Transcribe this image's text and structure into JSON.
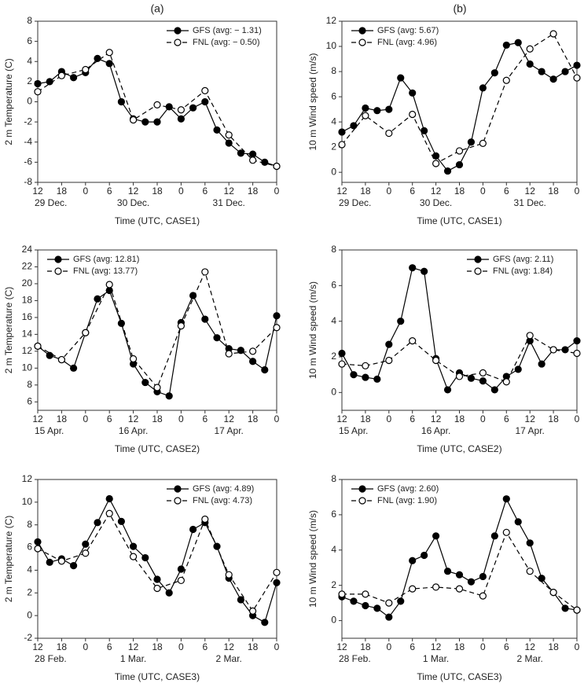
{
  "column_labels": [
    "(a)",
    "(b)"
  ],
  "chart_data": [
    {
      "type": "line",
      "ylabel": "2 m Temperature (C)",
      "xlabel": "Time (UTC, CASE1)",
      "legend": "upper right",
      "xlim": [
        0,
        60
      ],
      "ylim": [
        -8,
        8
      ],
      "yticks": [
        -8,
        -6,
        -4,
        -2,
        0,
        2,
        4,
        6,
        8
      ],
      "xticks": [
        {
          "value": 0,
          "label": "12"
        },
        {
          "value": 6,
          "label": "18"
        },
        {
          "value": 12,
          "label": "0"
        },
        {
          "value": 18,
          "label": "6"
        },
        {
          "value": 24,
          "label": "12"
        },
        {
          "value": 30,
          "label": "18"
        },
        {
          "value": 36,
          "label": "0"
        },
        {
          "value": 42,
          "label": "6"
        },
        {
          "value": 48,
          "label": "12"
        },
        {
          "value": 54,
          "label": "18"
        },
        {
          "value": 60,
          "label": "0"
        }
      ],
      "date_ticks": [
        {
          "value": 0,
          "label": "29 Dec."
        },
        {
          "value": 24,
          "label": "30 Dec."
        },
        {
          "value": 48,
          "label": "31 Dec."
        }
      ],
      "series": [
        {
          "name": "GFS (avg: − 1.31)",
          "color": "#000000",
          "linestyle": "solid",
          "marker": "filled",
          "x": [
            0,
            3,
            6,
            9,
            12,
            15,
            18,
            21,
            24,
            27,
            30,
            33,
            36,
            39,
            42,
            45,
            48,
            51,
            54,
            57,
            60
          ],
          "values": [
            1.8,
            2.0,
            3.0,
            2.4,
            2.9,
            4.3,
            3.8,
            0.0,
            -1.7,
            -2.0,
            -2.0,
            -0.5,
            -1.7,
            -0.6,
            0.0,
            -2.8,
            -4.1,
            -5.1,
            -5.2,
            -6.0,
            -6.4
          ]
        },
        {
          "name": "FNL (avg: − 0.50)",
          "color": "#000000",
          "linestyle": "dashed",
          "marker": "open",
          "x": [
            0,
            6,
            12,
            18,
            24,
            30,
            36,
            42,
            48,
            54,
            60
          ],
          "values": [
            1.0,
            2.6,
            3.2,
            4.9,
            -1.8,
            -0.3,
            -0.8,
            1.1,
            -3.3,
            -5.8,
            -6.4
          ]
        }
      ]
    },
    {
      "type": "line",
      "ylabel": "10 m Wind speed (m/s)",
      "xlabel": "Time (UTC, CASE1)",
      "legend": "upper left",
      "xlim": [
        0,
        60
      ],
      "ylim": [
        -0.8,
        12
      ],
      "yticks": [
        0,
        2,
        4,
        6,
        8,
        10,
        12
      ],
      "xticks": [
        {
          "value": 0,
          "label": "12"
        },
        {
          "value": 6,
          "label": "18"
        },
        {
          "value": 12,
          "label": "0"
        },
        {
          "value": 18,
          "label": "6"
        },
        {
          "value": 24,
          "label": "12"
        },
        {
          "value": 30,
          "label": "18"
        },
        {
          "value": 36,
          "label": "0"
        },
        {
          "value": 42,
          "label": "6"
        },
        {
          "value": 48,
          "label": "12"
        },
        {
          "value": 54,
          "label": "18"
        },
        {
          "value": 60,
          "label": "0"
        }
      ],
      "date_ticks": [
        {
          "value": 0,
          "label": "29 Dec."
        },
        {
          "value": 24,
          "label": "30 Dec."
        },
        {
          "value": 48,
          "label": "31 Dec."
        }
      ],
      "series": [
        {
          "name": "GFS (avg: 5.67)",
          "color": "#000000",
          "linestyle": "solid",
          "marker": "filled",
          "x": [
            0,
            3,
            6,
            9,
            12,
            15,
            18,
            21,
            24,
            27,
            30,
            33,
            36,
            39,
            42,
            45,
            48,
            51,
            54,
            57,
            60
          ],
          "values": [
            3.2,
            3.7,
            5.1,
            4.9,
            5.0,
            7.5,
            6.3,
            3.3,
            1.3,
            0.1,
            0.6,
            2.4,
            6.7,
            7.9,
            10.1,
            10.3,
            8.6,
            8.0,
            7.4,
            8.0,
            8.5
          ]
        },
        {
          "name": "FNL (avg: 4.96)",
          "color": "#000000",
          "linestyle": "dashed",
          "marker": "open",
          "x": [
            0,
            6,
            12,
            18,
            24,
            30,
            36,
            42,
            48,
            54,
            60
          ],
          "values": [
            2.2,
            4.5,
            3.1,
            4.6,
            0.7,
            1.7,
            2.3,
            7.3,
            9.8,
            11.0,
            7.5
          ]
        }
      ]
    },
    {
      "type": "line",
      "ylabel": "2 m Temperature (C)",
      "xlabel": "Time (UTC, CASE2)",
      "legend": "upper left",
      "xlim": [
        0,
        60
      ],
      "ylim": [
        5,
        24
      ],
      "yticks": [
        6,
        8,
        10,
        12,
        14,
        16,
        18,
        20,
        22,
        24
      ],
      "xticks": [
        {
          "value": 0,
          "label": "12"
        },
        {
          "value": 6,
          "label": "18"
        },
        {
          "value": 12,
          "label": "0"
        },
        {
          "value": 18,
          "label": "6"
        },
        {
          "value": 24,
          "label": "12"
        },
        {
          "value": 30,
          "label": "18"
        },
        {
          "value": 36,
          "label": "0"
        },
        {
          "value": 42,
          "label": "6"
        },
        {
          "value": 48,
          "label": "12"
        },
        {
          "value": 54,
          "label": "18"
        },
        {
          "value": 60,
          "label": "0"
        }
      ],
      "date_ticks": [
        {
          "value": 0,
          "label": "15 Apr."
        },
        {
          "value": 24,
          "label": "16 Apr."
        },
        {
          "value": 48,
          "label": "17 Apr."
        }
      ],
      "series": [
        {
          "name": "GFS (avg: 12.81)",
          "color": "#000000",
          "linestyle": "solid",
          "marker": "filled",
          "x": [
            0,
            3,
            6,
            9,
            12,
            15,
            18,
            21,
            24,
            27,
            30,
            33,
            36,
            39,
            42,
            45,
            48,
            51,
            54,
            57,
            60
          ],
          "values": [
            12.6,
            11.5,
            11.0,
            10.0,
            14.2,
            18.2,
            19.2,
            15.3,
            10.5,
            8.3,
            7.2,
            6.7,
            15.4,
            18.6,
            15.8,
            13.6,
            12.3,
            12.1,
            10.8,
            9.8,
            16.2
          ]
        },
        {
          "name": "FNL (avg: 13.77)",
          "color": "#000000",
          "linestyle": "dashed",
          "marker": "open",
          "x": [
            0,
            6,
            12,
            18,
            24,
            30,
            36,
            42,
            48,
            54,
            60
          ],
          "values": [
            12.6,
            11.0,
            14.2,
            19.9,
            11.1,
            7.7,
            15.0,
            21.4,
            11.7,
            12.0,
            14.8
          ]
        }
      ]
    },
    {
      "type": "line",
      "ylabel": "10 m Wind speed (m/s)",
      "xlabel": "Time (UTC, CASE2)",
      "legend": "upper right",
      "xlim": [
        0,
        60
      ],
      "ylim": [
        -1,
        8
      ],
      "yticks": [
        0,
        2,
        4,
        6,
        8
      ],
      "xticks": [
        {
          "value": 0,
          "label": "12"
        },
        {
          "value": 6,
          "label": "18"
        },
        {
          "value": 12,
          "label": "0"
        },
        {
          "value": 18,
          "label": "6"
        },
        {
          "value": 24,
          "label": "12"
        },
        {
          "value": 30,
          "label": "18"
        },
        {
          "value": 36,
          "label": "0"
        },
        {
          "value": 42,
          "label": "6"
        },
        {
          "value": 48,
          "label": "12"
        },
        {
          "value": 54,
          "label": "18"
        },
        {
          "value": 60,
          "label": "0"
        }
      ],
      "date_ticks": [
        {
          "value": 0,
          "label": "15 Apr."
        },
        {
          "value": 24,
          "label": "16 Apr."
        },
        {
          "value": 48,
          "label": "17 Apr."
        }
      ],
      "series": [
        {
          "name": "GFS (avg: 2.11)",
          "color": "#000000",
          "linestyle": "solid",
          "marker": "filled",
          "x": [
            0,
            3,
            6,
            9,
            12,
            15,
            18,
            21,
            24,
            27,
            30,
            33,
            36,
            39,
            42,
            45,
            48,
            51,
            54,
            57,
            60
          ],
          "values": [
            2.2,
            1.0,
            0.85,
            0.75,
            2.7,
            4.0,
            7.0,
            6.8,
            1.9,
            0.15,
            1.1,
            0.8,
            0.65,
            0.15,
            0.9,
            1.3,
            2.9,
            1.6,
            2.4,
            2.4,
            2.9
          ]
        },
        {
          "name": "FNL (avg: 1.84)",
          "color": "#000000",
          "linestyle": "dashed",
          "marker": "open",
          "x": [
            0,
            6,
            12,
            18,
            24,
            30,
            36,
            42,
            48,
            54,
            60
          ],
          "values": [
            1.6,
            1.5,
            1.8,
            2.9,
            1.8,
            0.9,
            1.1,
            0.6,
            3.2,
            2.4,
            2.2
          ]
        }
      ]
    },
    {
      "type": "line",
      "ylabel": "2 m Temperature (C)",
      "xlabel": "Time (UTC, CASE3)",
      "legend": "upper right",
      "xlim": [
        0,
        60
      ],
      "ylim": [
        -2,
        12
      ],
      "yticks": [
        -2,
        0,
        2,
        4,
        6,
        8,
        10,
        12
      ],
      "xticks": [
        {
          "value": 0,
          "label": "12"
        },
        {
          "value": 6,
          "label": "18"
        },
        {
          "value": 12,
          "label": "0"
        },
        {
          "value": 18,
          "label": "6"
        },
        {
          "value": 24,
          "label": "12"
        },
        {
          "value": 30,
          "label": "18"
        },
        {
          "value": 36,
          "label": "0"
        },
        {
          "value": 42,
          "label": "6"
        },
        {
          "value": 48,
          "label": "12"
        },
        {
          "value": 54,
          "label": "18"
        },
        {
          "value": 60,
          "label": "0"
        }
      ],
      "date_ticks": [
        {
          "value": 0,
          "label": "28 Feb."
        },
        {
          "value": 24,
          "label": "1 Mar."
        },
        {
          "value": 48,
          "label": "2 Mar."
        }
      ],
      "series": [
        {
          "name": "GFS (avg: 4.89)",
          "color": "#000000",
          "linestyle": "solid",
          "marker": "filled",
          "x": [
            0,
            3,
            6,
            9,
            12,
            15,
            18,
            21,
            24,
            27,
            30,
            33,
            36,
            39,
            42,
            45,
            48,
            51,
            54,
            57,
            60
          ],
          "values": [
            6.5,
            4.7,
            5.0,
            4.4,
            6.3,
            8.2,
            10.3,
            8.3,
            6.1,
            5.1,
            3.2,
            2.0,
            4.1,
            7.6,
            8.2,
            6.1,
            3.3,
            1.4,
            0.0,
            -0.6,
            2.9
          ]
        },
        {
          "name": "FNL (avg: 4.73)",
          "color": "#000000",
          "linestyle": "dashed",
          "marker": "open",
          "x": [
            0,
            6,
            12,
            18,
            24,
            30,
            36,
            42,
            48,
            54,
            60
          ],
          "values": [
            5.9,
            4.8,
            5.5,
            9.0,
            5.2,
            2.4,
            3.1,
            8.5,
            3.6,
            0.4,
            3.8
          ]
        }
      ]
    },
    {
      "type": "line",
      "ylabel": "10 m Wind speed (m/s)",
      "xlabel": "Time (UTC, CASE3)",
      "legend": "upper left",
      "xlim": [
        0,
        60
      ],
      "ylim": [
        -1,
        8
      ],
      "yticks": [
        0,
        2,
        4,
        6,
        8
      ],
      "xticks": [
        {
          "value": 0,
          "label": "12"
        },
        {
          "value": 6,
          "label": "18"
        },
        {
          "value": 12,
          "label": "0"
        },
        {
          "value": 18,
          "label": "6"
        },
        {
          "value": 24,
          "label": "12"
        },
        {
          "value": 30,
          "label": "18"
        },
        {
          "value": 36,
          "label": "0"
        },
        {
          "value": 42,
          "label": "6"
        },
        {
          "value": 48,
          "label": "12"
        },
        {
          "value": 54,
          "label": "18"
        },
        {
          "value": 60,
          "label": "0"
        }
      ],
      "date_ticks": [
        {
          "value": 0,
          "label": "28 Feb."
        },
        {
          "value": 24,
          "label": "1 Mar."
        },
        {
          "value": 48,
          "label": "2 Mar."
        }
      ],
      "series": [
        {
          "name": "GFS (avg: 2.60)",
          "color": "#000000",
          "linestyle": "solid",
          "marker": "filled",
          "x": [
            0,
            3,
            6,
            9,
            12,
            15,
            18,
            21,
            24,
            27,
            30,
            33,
            36,
            39,
            42,
            45,
            48,
            51,
            54,
            57,
            60
          ],
          "values": [
            1.35,
            1.1,
            0.85,
            0.7,
            0.2,
            1.1,
            3.4,
            3.7,
            4.8,
            2.8,
            2.6,
            2.2,
            2.5,
            4.8,
            6.9,
            5.6,
            4.4,
            2.4,
            1.6,
            0.7,
            0.6
          ]
        },
        {
          "name": "FNL (avg: 1.90)",
          "color": "#000000",
          "linestyle": "dashed",
          "marker": "open",
          "x": [
            0,
            6,
            12,
            18,
            24,
            30,
            36,
            42,
            48,
            54,
            60
          ],
          "values": [
            1.5,
            1.5,
            1.0,
            1.8,
            1.9,
            1.8,
            1.4,
            5.0,
            2.8,
            1.6,
            0.6
          ]
        }
      ]
    }
  ]
}
